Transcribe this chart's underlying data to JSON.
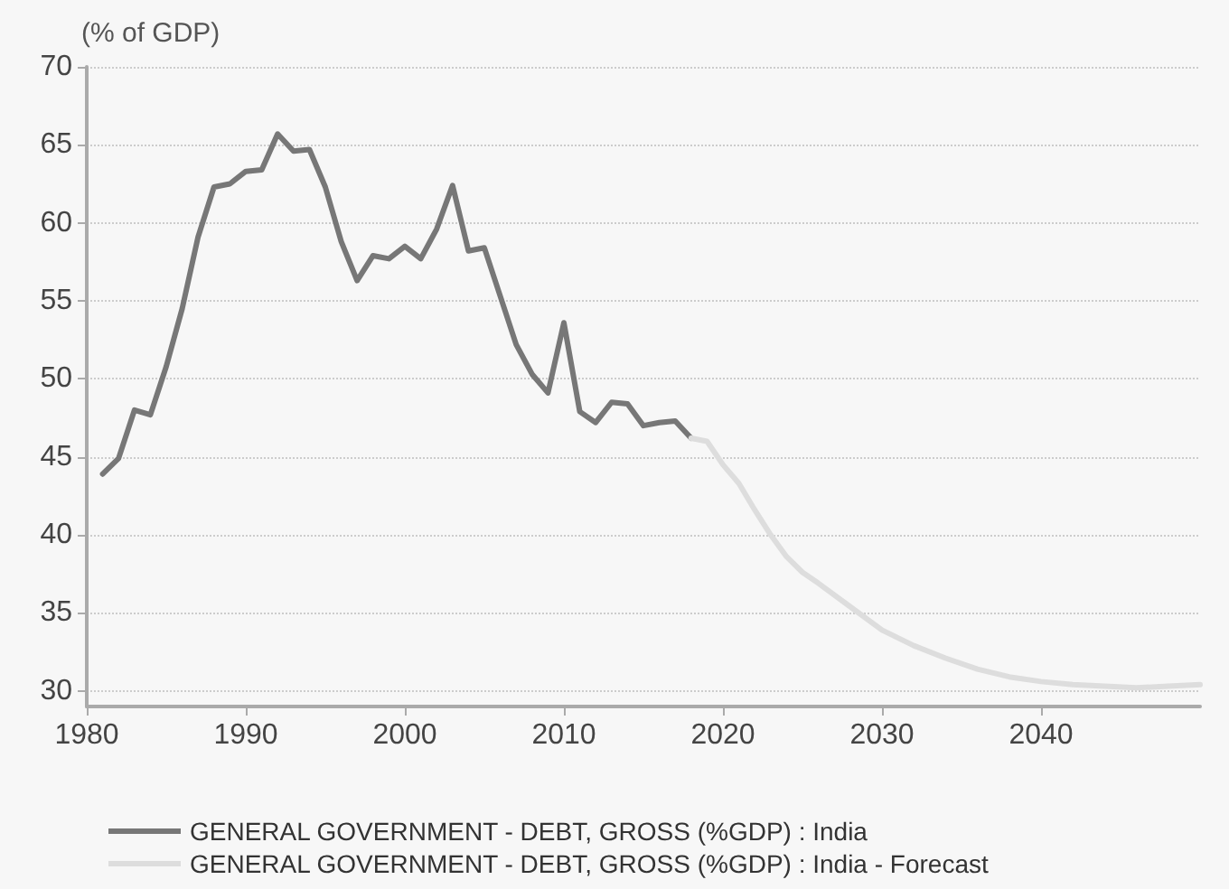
{
  "chart_data": {
    "type": "line",
    "ylabel": "(% of GDP)",
    "xlim": [
      1980,
      2050
    ],
    "xticks": [
      1980,
      1990,
      2000,
      2010,
      2020,
      2030,
      2040
    ],
    "ylim": [
      29,
      70
    ],
    "yticks": [
      30,
      35,
      40,
      45,
      50,
      55,
      60,
      65,
      70
    ],
    "grid": "y",
    "legend": "bottom",
    "marker": "none",
    "line_style": "solid",
    "series": [
      {
        "name": "GENERAL GOVERNMENT - DEBT, GROSS (%GDP) : India",
        "color": "#777777",
        "x": [
          1981,
          1982,
          1983,
          1984,
          1985,
          1986,
          1987,
          1988,
          1989,
          1990,
          1991,
          1992,
          1993,
          1994,
          1995,
          1996,
          1997,
          1998,
          1999,
          2000,
          2001,
          2002,
          2003,
          2004,
          2005,
          2006,
          2007,
          2008,
          2009,
          2010,
          2011,
          2012,
          2013,
          2014,
          2015,
          2016,
          2017,
          2018
        ],
        "values": [
          43.9,
          44.9,
          48.0,
          47.7,
          50.8,
          54.5,
          59.1,
          62.3,
          62.5,
          63.3,
          63.4,
          65.7,
          64.6,
          64.7,
          62.3,
          58.8,
          56.3,
          57.9,
          57.7,
          58.5,
          57.7,
          59.6,
          62.4,
          58.2,
          58.4,
          55.3,
          52.2,
          50.3,
          49.1,
          53.6,
          47.9,
          47.2,
          48.5,
          48.4,
          47.0,
          47.2,
          47.3,
          46.2
        ]
      },
      {
        "name": "GENERAL GOVERNMENT - DEBT, GROSS (%GDP) : India - Forecast",
        "color": "#dddddd",
        "x": [
          2018,
          2019,
          2020,
          2021,
          2022,
          2023,
          2024,
          2025,
          2026,
          2028,
          2030,
          2032,
          2034,
          2036,
          2038,
          2040,
          2042,
          2044,
          2046,
          2048,
          2050
        ],
        "values": [
          46.2,
          46.0,
          44.5,
          43.3,
          41.6,
          40.0,
          38.6,
          37.6,
          36.9,
          35.4,
          33.9,
          32.9,
          32.1,
          31.4,
          30.9,
          30.6,
          30.4,
          30.3,
          30.2,
          30.3,
          30.4
        ]
      }
    ]
  }
}
